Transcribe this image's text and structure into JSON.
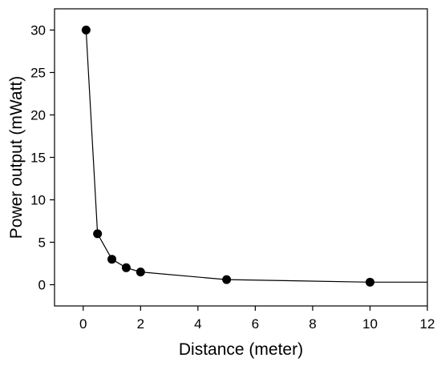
{
  "chart_data": {
    "type": "line",
    "title": "",
    "xlabel": "Distance (meter)",
    "ylabel": "Power output (mWatt)",
    "xlim": [
      -1,
      12
    ],
    "ylim": [
      -2.5,
      32.5
    ],
    "xticks": [
      0,
      2,
      4,
      6,
      8,
      10,
      12
    ],
    "yticks": [
      0,
      5,
      10,
      15,
      20,
      25,
      30
    ],
    "xtick_labels": [
      "0",
      "2",
      "4",
      "6",
      "8",
      "10",
      "12"
    ],
    "ytick_labels": [
      "0",
      "5",
      "10",
      "15",
      "20",
      "25",
      "30"
    ],
    "grid": false,
    "legend": "none",
    "series": [
      {
        "x": [
          0.1,
          0.5,
          1.0,
          1.5,
          2.0,
          5.0,
          10.0
        ],
        "y": [
          30,
          6,
          3,
          2,
          1.5,
          0.6,
          0.3
        ],
        "line_color": "#000000",
        "marker": "filled-circle",
        "marker_color": "#000000",
        "line_extends_to_axis_edge": true
      }
    ]
  }
}
